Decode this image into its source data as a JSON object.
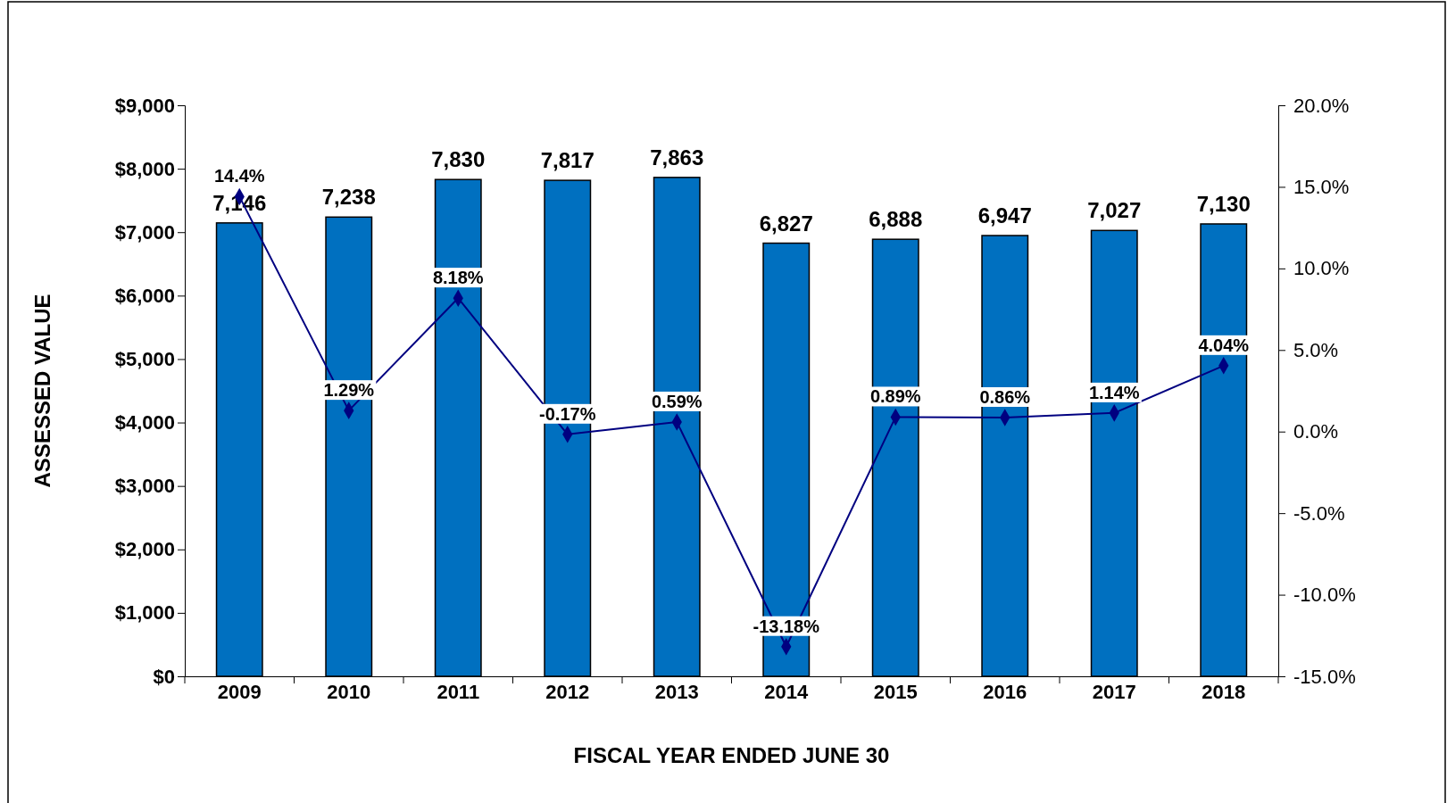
{
  "chart_data": {
    "type": "bar",
    "xlabel": "FISCAL YEAR ENDED JUNE 30",
    "ylabel": "ASSESSED VALUE",
    "categories": [
      "2009",
      "2010",
      "2011",
      "2012",
      "2013",
      "2014",
      "2015",
      "2016",
      "2017",
      "2018"
    ],
    "series": [
      {
        "color": "#0070c0",
        "values": [
          7146,
          7238,
          7830,
          7817,
          7863,
          6827,
          6888,
          6947,
          7027,
          7130
        ],
        "value_labels": [
          "7,146",
          "7,238",
          "7,830",
          "7,817",
          "7,863",
          "6,827",
          "6,888",
          "6,947",
          "7,027",
          "7,130"
        ]
      },
      {
        "type": "line",
        "axis": "y2",
        "color": "#000080",
        "marker": "diamond",
        "values": [
          14.4,
          1.29,
          8.18,
          -0.17,
          0.59,
          -13.18,
          0.89,
          0.86,
          1.14,
          4.04
        ],
        "value_labels": [
          "14.4%",
          "1.29%",
          "8.18%",
          "-0.17%",
          "0.59%",
          "-13.18%",
          "0.89%",
          "0.86%",
          "1.14%",
          "4.04%"
        ]
      }
    ],
    "ylim": [
      0,
      9000
    ],
    "yticks": [
      {
        "value": 0,
        "label": "$0"
      },
      {
        "value": 1000,
        "label": "$1,000"
      },
      {
        "value": 2000,
        "label": "$2,000"
      },
      {
        "value": 3000,
        "label": "$3,000"
      },
      {
        "value": 4000,
        "label": "$4,000"
      },
      {
        "value": 5000,
        "label": "$5,000"
      },
      {
        "value": 6000,
        "label": "$6,000"
      },
      {
        "value": 7000,
        "label": "$7,000"
      },
      {
        "value": 8000,
        "label": "$8,000"
      },
      {
        "value": 9000,
        "label": "$9,000"
      }
    ],
    "y2lim": [
      -15,
      20
    ],
    "y2ticks": [
      {
        "value": -15,
        "label": "-15.0%"
      },
      {
        "value": -10,
        "label": "-10.0%"
      },
      {
        "value": -5,
        "label": "-5.0%"
      },
      {
        "value": 0,
        "label": "0.0%"
      },
      {
        "value": 5,
        "label": "5.0%"
      },
      {
        "value": 10,
        "label": "10.0%"
      },
      {
        "value": 15,
        "label": "15.0%"
      },
      {
        "value": 20,
        "label": "20.0%"
      }
    ],
    "grid": false
  }
}
